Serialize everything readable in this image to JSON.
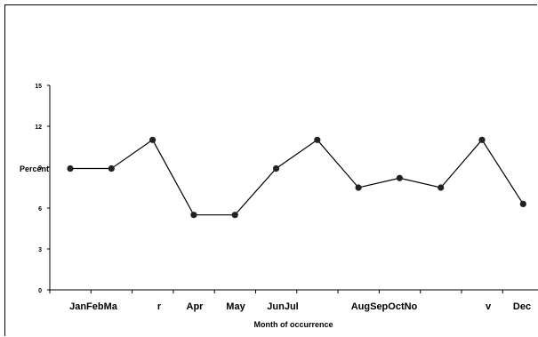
{
  "chart_data": {
    "type": "line",
    "title": "",
    "xlabel": "Month of occurrence",
    "ylabel": "Percent",
    "ylim": [
      0,
      15
    ],
    "yticks": [
      0,
      3,
      6,
      9,
      12,
      15
    ],
    "grid": false,
    "legend": "none",
    "categories": [
      "Jan",
      "Feb",
      "Mar",
      "Apr",
      "May",
      "Jun",
      "Jul",
      "Aug",
      "Sep",
      "Oct",
      "Nov",
      "Dec"
    ],
    "tick_text": [
      "JanFebMa",
      "r",
      "Apr",
      "May",
      "JunJul",
      "AugSepOctNo",
      "v",
      "Dec"
    ],
    "values": [
      8.9,
      8.9,
      11.0,
      5.5,
      5.5,
      8.9,
      11.0,
      7.5,
      8.2,
      7.5,
      11.0,
      6.3
    ],
    "colors": {
      "line": "#000000",
      "marker": "#222222"
    }
  }
}
